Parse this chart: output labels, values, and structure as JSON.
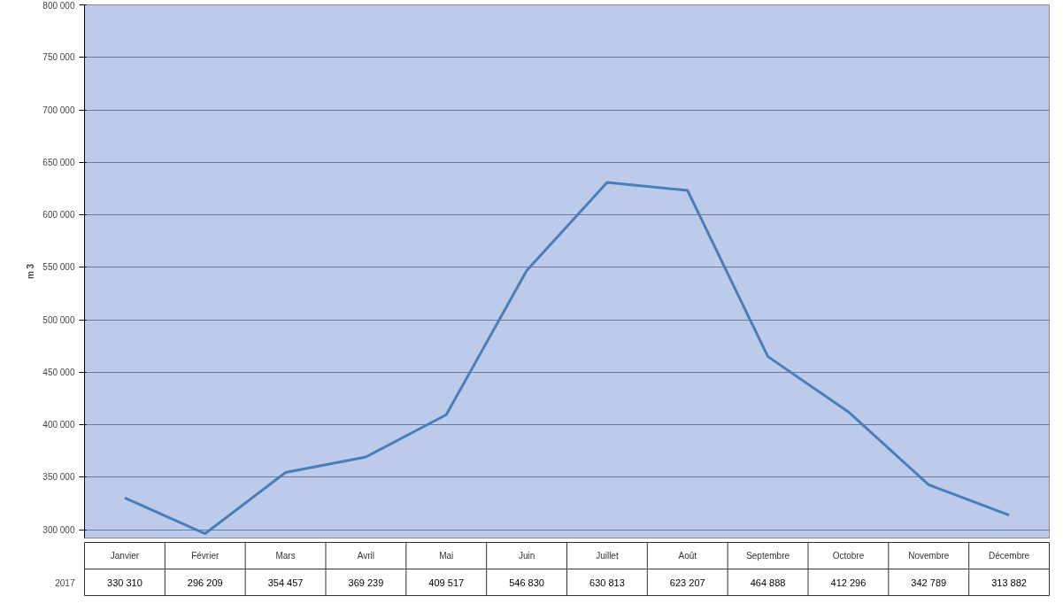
{
  "chart_data": {
    "type": "line",
    "ylabel": "m 3",
    "categories": [
      "Janvier",
      "Février",
      "Mars",
      "Avril",
      "Mai",
      "Juin",
      "Juillet",
      "Août",
      "Septembre",
      "Octobre",
      "Novembre",
      "Décembre"
    ],
    "series": [
      {
        "name": "2017",
        "color": "#4a7ebb",
        "values": [
          330310,
          296209,
          354457,
          369239,
          409517,
          546830,
          630813,
          623207,
          464888,
          412296,
          342789,
          313882
        ],
        "value_labels": [
          "330 310",
          "296 209",
          "354 457",
          "369 239",
          "409 517",
          "546 830",
          "630 813",
          "623 207",
          "464 888",
          "412 296",
          "342 789",
          "313 882"
        ]
      }
    ],
    "ylim": [
      292000,
      800000
    ],
    "yticks": [
      {
        "value": 300000,
        "label": "300 000"
      },
      {
        "value": 350000,
        "label": "350 000"
      },
      {
        "value": 400000,
        "label": "400 000"
      },
      {
        "value": 450000,
        "label": "450 000"
      },
      {
        "value": 500000,
        "label": "500 000"
      },
      {
        "value": 550000,
        "label": "550 000"
      },
      {
        "value": 600000,
        "label": "600 000"
      },
      {
        "value": 650000,
        "label": "650 000"
      },
      {
        "value": 700000,
        "label": "700 000"
      },
      {
        "value": 750000,
        "label": "750 000"
      },
      {
        "value": 800000,
        "label": "800 000"
      }
    ],
    "grid": "y",
    "marker": "none",
    "line_style": "solid"
  }
}
